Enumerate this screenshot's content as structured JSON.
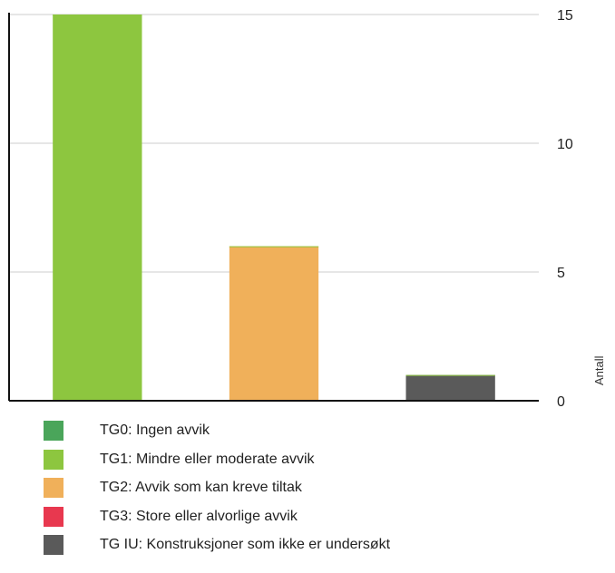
{
  "chart_data": {
    "type": "bar",
    "categories": [
      "TG1",
      "TG2",
      "TG IU"
    ],
    "values": [
      15,
      6,
      1
    ],
    "colors": [
      "#8dc63f",
      "#f0b05a",
      "#5a5a5a"
    ],
    "ylabel": "Antall",
    "ylim": [
      0,
      15
    ],
    "yticks": [
      "0",
      "5",
      "10",
      "15"
    ],
    "grid": true,
    "y_axis_side": "right",
    "legend_position": "bottom",
    "legend": [
      {
        "label": "TG0: Ingen avvik",
        "color": "#4aa55a"
      },
      {
        "label": "TG1: Mindre eller moderate avvik",
        "color": "#8dc63f"
      },
      {
        "label": "TG2: Avvik som kan kreve tiltak",
        "color": "#f0b05a"
      },
      {
        "label": "TG3: Store eller alvorlige avvik",
        "color": "#e8384f"
      },
      {
        "label": "TG IU: Konstruksjoner som ikke er undersøkt",
        "color": "#5a5a5a"
      }
    ]
  }
}
